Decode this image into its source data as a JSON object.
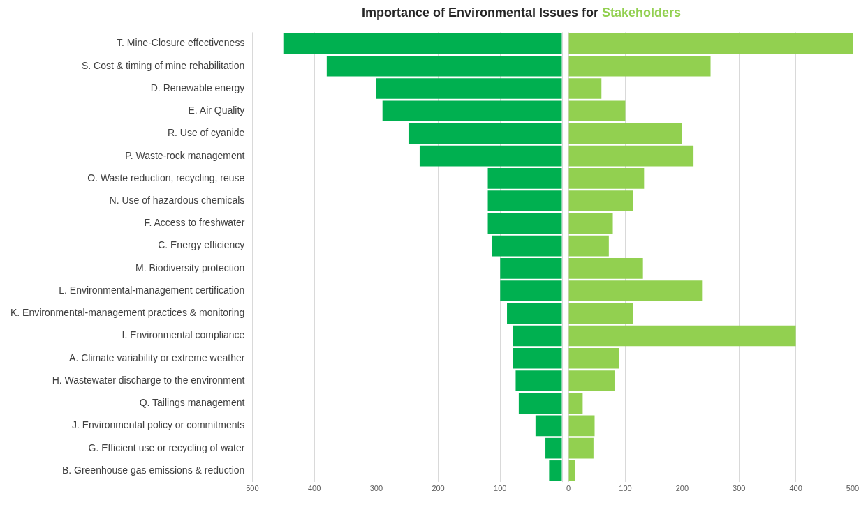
{
  "chart_data": [
    {
      "type": "bar",
      "orientation": "horizontal",
      "title": "Importance of Environmental Issues for",
      "categories": [
        "T. Mine-Closure effectiveness",
        "S. Cost & timing of mine rehabilitation",
        "D. Renewable energy",
        "E. Air Quality",
        "R. Use of cyanide",
        "P. Waste-rock management",
        "O. Waste reduction, recycling, reuse",
        "N. Use of hazardous chemicals",
        "F. Access to freshwater",
        "C. Energy efficiency",
        "M. Biodiversity protection",
        "L. Environmental-management certification",
        "K. Environmental-management practices & monitoring",
        "I. Environmental compliance",
        "A. Climate variability or extreme weather",
        "H. Wastewater discharge to the environment",
        "Q. Tailings management",
        "J. Environmental policy or commitments",
        "G. Efficient use or recycling of water",
        "B. Greenhouse gas emissions & reduction"
      ],
      "series": [
        {
          "color": "#00b050",
          "values": [
            450,
            380,
            300,
            290,
            248,
            230,
            120,
            120,
            120,
            113,
            100,
            100,
            89,
            80,
            80,
            75,
            70,
            43,
            27,
            21
          ]
        }
      ],
      "xlim": [
        500,
        0
      ],
      "xticks": [
        500,
        400,
        300,
        200,
        100,
        {
          "value": 0,
          "label": null
        }
      ],
      "grid": "x"
    },
    {
      "type": "bar",
      "orientation": "horizontal",
      "tick_labels": "x",
      "categories": [
        null,
        null,
        null,
        null,
        null,
        null,
        null,
        null,
        null,
        null,
        null,
        null,
        null,
        null,
        null,
        null,
        null,
        null,
        null,
        null
      ],
      "series": [
        {
          "name": "Stakeholders",
          "color": "#92d050",
          "values": [
            500,
            250,
            58,
            100,
            200,
            220,
            133,
            113,
            78,
            71,
            131,
            235,
            113,
            400,
            89,
            81,
            25,
            46,
            44,
            12
          ]
        }
      ],
      "xlim": [
        0,
        500
      ],
      "xticks": [
        0,
        100,
        200,
        300,
        400,
        500
      ],
      "grid": "x"
    }
  ]
}
